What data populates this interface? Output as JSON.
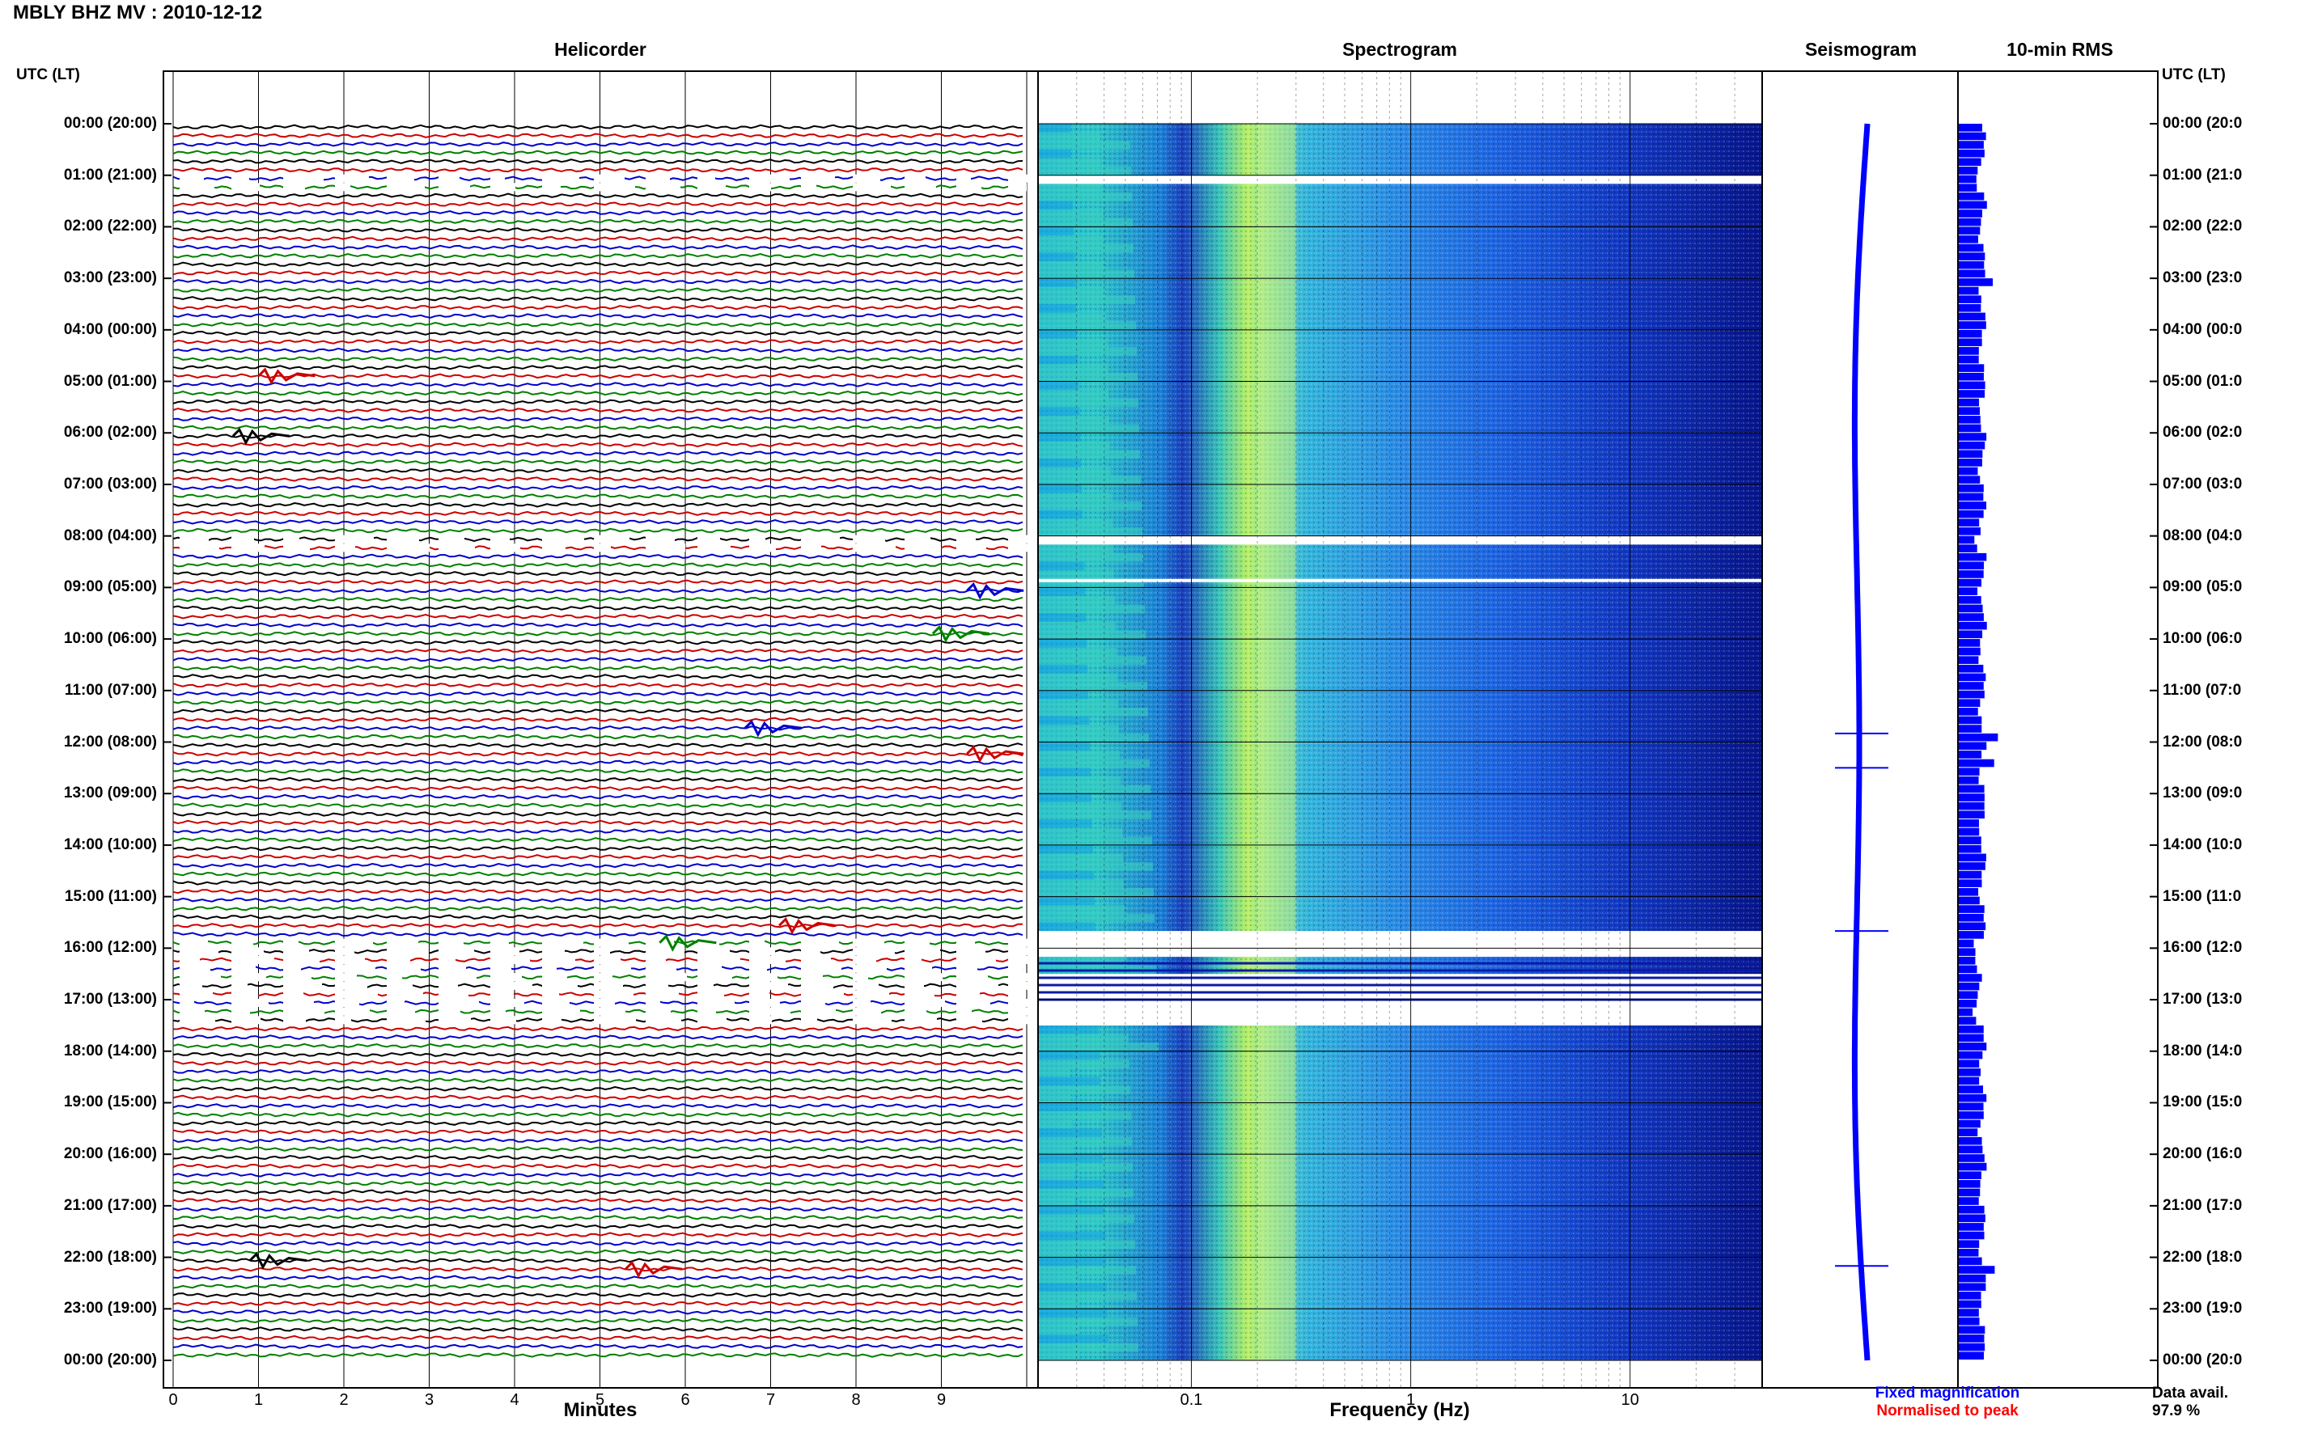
{
  "station_label": "MBLY BHZ MV : 2010-12-12",
  "panels": {
    "helicorder": "Helicorder",
    "spectrogram": "Spectrogram",
    "seismogram": "Seismogram",
    "rms": "10-min RMS"
  },
  "utc_header": "UTC (LT)",
  "time_labels": [
    "00:00 (20:00)",
    "01:00 (21:00)",
    "02:00 (22:00)",
    "03:00 (23:00)",
    "04:00 (00:00)",
    "05:00 (01:00)",
    "06:00 (02:00)",
    "07:00 (03:00)",
    "08:00 (04:00)",
    "09:00 (05:00)",
    "10:00 (06:00)",
    "11:00 (07:00)",
    "12:00 (08:00)",
    "13:00 (09:00)",
    "14:00 (10:00)",
    "15:00 (11:00)",
    "16:00 (12:00)",
    "17:00 (13:00)",
    "18:00 (14:00)",
    "19:00 (15:00)",
    "20:00 (16:00)",
    "21:00 (17:00)",
    "22:00 (18:00)",
    "23:00 (19:00)",
    "00:00 (20:00)"
  ],
  "time_labels_right": [
    "00:00 (20:0",
    "01:00 (21:0",
    "02:00 (22:0",
    "03:00 (23:0",
    "04:00 (00:0",
    "05:00 (01:0",
    "06:00 (02:0",
    "07:00 (03:0",
    "08:00 (04:0",
    "09:00 (05:0",
    "10:00 (06:0",
    "11:00 (07:0",
    "12:00 (08:0",
    "13:00 (09:0",
    "14:00 (10:0",
    "15:00 (11:0",
    "16:00 (12:0",
    "17:00 (13:0",
    "18:00 (14:0",
    "19:00 (15:0",
    "20:00 (16:0",
    "21:00 (17:0",
    "22:00 (18:0",
    "23:00 (19:0",
    "00:00 (20:0"
  ],
  "x_axis": {
    "minutes_label": "Minutes",
    "minute_ticks": [
      "0",
      "1",
      "2",
      "3",
      "4",
      "5",
      "6",
      "7",
      "8",
      "9"
    ],
    "frequency_label": "Frequency (Hz)",
    "frequency_ticks": [
      "0.1",
      "1",
      "10"
    ]
  },
  "legend": {
    "fixed": "Fixed magnification",
    "normalised": "Normalised to peak",
    "fixed_color": "#0000ff",
    "normalised_color": "#ff0000"
  },
  "data_avail_label": "Data avail.",
  "data_avail_value": "97.9 %",
  "colors": {
    "trace_cycle": [
      "#000000",
      "#cc0000",
      "#0000cc",
      "#008000"
    ],
    "spectrogram_low": "#00008b",
    "spectrogram_high": "#ffff60",
    "rms_bar": "#0000ff"
  },
  "chart_data": [
    {
      "type": "line",
      "title": "Helicorder",
      "xlabel": "Minutes",
      "xlim": [
        0,
        10
      ],
      "ylabel": "UTC (LT)",
      "ylim": [
        "00:00",
        "24:00"
      ],
      "row_interval_minutes": 10,
      "trace_colors_cycle": [
        "black",
        "red",
        "blue",
        "green"
      ],
      "events": [
        {
          "time_utc": "04:50",
          "minute": 1.0
        },
        {
          "time_utc": "06:00",
          "minute": 0.7
        },
        {
          "time_utc": "09:00",
          "minute": 9.3
        },
        {
          "time_utc": "09:50",
          "minute": 8.9
        },
        {
          "time_utc": "11:40",
          "minute": 6.7
        },
        {
          "time_utc": "12:10",
          "minute": 9.3
        },
        {
          "time_utc": "15:30",
          "minute": 7.1
        },
        {
          "time_utc": "15:50",
          "minute": 5.7
        },
        {
          "time_utc": "22:00",
          "minute": 0.9
        },
        {
          "time_utc": "22:10",
          "minute": 5.3
        }
      ],
      "gaps_utc": [
        [
          "01:00",
          "01:10"
        ],
        [
          "08:00",
          "08:10"
        ],
        [
          "15:50",
          "17:20"
        ]
      ]
    },
    {
      "type": "heatmap",
      "title": "Spectrogram",
      "xlabel": "Frequency (Hz)",
      "xscale": "log",
      "xlim": [
        0.02,
        40
      ],
      "xticks": [
        0.1,
        1,
        10
      ],
      "ylim": [
        "00:00",
        "24:00"
      ],
      "peak_band_hz": [
        0.2,
        0.3
      ],
      "gaps_utc": [
        [
          "01:00",
          "01:10"
        ],
        [
          "08:00",
          "08:10"
        ],
        [
          "08:50",
          "08:50"
        ],
        [
          "15:40",
          "16:10"
        ],
        [
          "16:30",
          "17:30"
        ]
      ]
    },
    {
      "type": "line",
      "title": "Seismogram",
      "ylim": [
        "00:00",
        "24:00"
      ],
      "spikes_utc": [
        "11:50",
        "12:30",
        "15:40",
        "22:10"
      ]
    },
    {
      "type": "bar",
      "title": "10-min RMS",
      "orientation": "horizontal",
      "ylim": [
        "00:00",
        "24:00"
      ],
      "peaks_utc": [
        "03:00",
        "11:50",
        "12:20",
        "22:10"
      ]
    }
  ]
}
